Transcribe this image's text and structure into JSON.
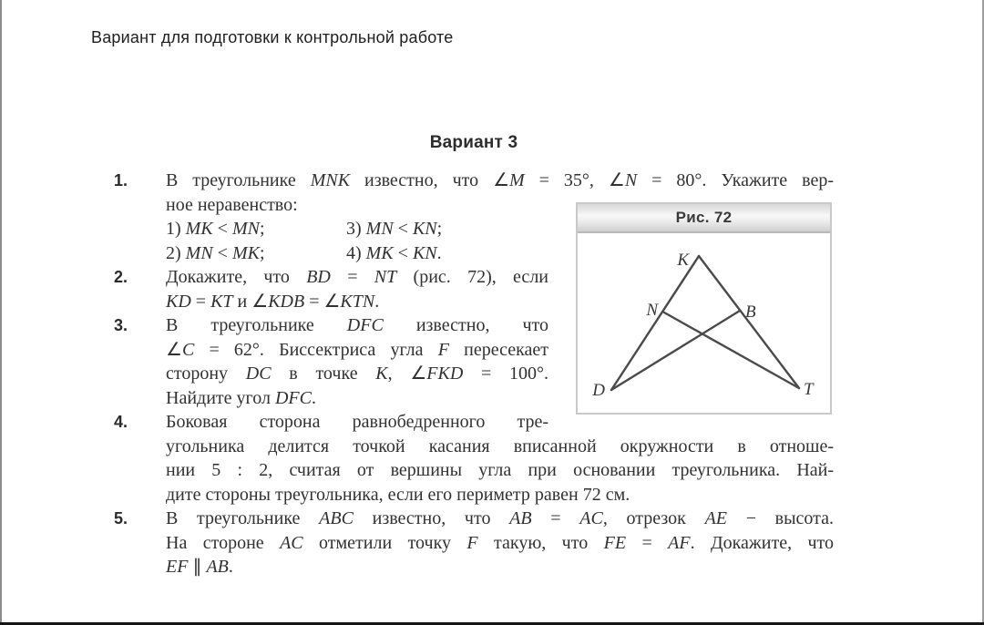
{
  "page": {
    "header": "Вариант для подготовки к контрольной работе",
    "title": "Вариант 3"
  },
  "figure": {
    "caption": "Рис. 72",
    "labels": {
      "K": "K",
      "N": "N",
      "B": "B",
      "D": "D",
      "T": "T"
    }
  },
  "problems": [
    {
      "num": "1.",
      "lines": [
        "В треугольнике <i>MNK</i> известно, что ∠<i>M</i> = 35°, ∠<i>N</i> = 80°. Укажите вер-",
        "ное неравенство:"
      ],
      "options": [
        [
          "1) <i>MK</i> &lt; <i>MN</i>;",
          "3) <i>MN</i> &lt; <i>KN</i>;"
        ],
        [
          "2) <i>MN</i> &lt; <i>MK</i>;",
          "4) <i>MK</i> &lt; <i>KN</i>."
        ]
      ]
    },
    {
      "num": "2.",
      "lines": [
        "Докажите, что <i>BD</i> = <i>NT</i> (рис. 72), если",
        "<i>KD</i> = <i>KT</i> и ∠<i>KDB</i> = ∠<i>KTN</i>."
      ]
    },
    {
      "num": "3.",
      "lines": [
        "В треугольнике <i>DFC</i> известно, что",
        "∠<i>C</i> = 62°. Биссектриса угла <i>F</i> пересекает",
        "сторону <i>DC</i> в точке <i>K</i>, ∠<i>FKD</i> = 100°.",
        "Найдите угол <i>DFC</i>."
      ]
    },
    {
      "num": "4.",
      "lines": [
        "Боковая сторона равнобедренного тре-",
        "угольника делится точкой касания вписанной окружности в отноше-",
        "нии 5 : 2, считая от вершины угла при основании треугольника. Най-",
        "дите стороны треугольника, если его периметр равен 72 см."
      ]
    },
    {
      "num": "5.",
      "lines": [
        "В треугольнике <i>ABC</i> известно, что <i>AB</i> = <i>AC</i>, отрезок <i>AE</i> − высота.",
        "На стороне <i>AC</i> отметили точку <i>F</i> такую, что <i>FE</i> = <i>AF</i>. Докажите, что",
        "<i>EF</i> ∥ <i>AB</i>."
      ]
    }
  ]
}
